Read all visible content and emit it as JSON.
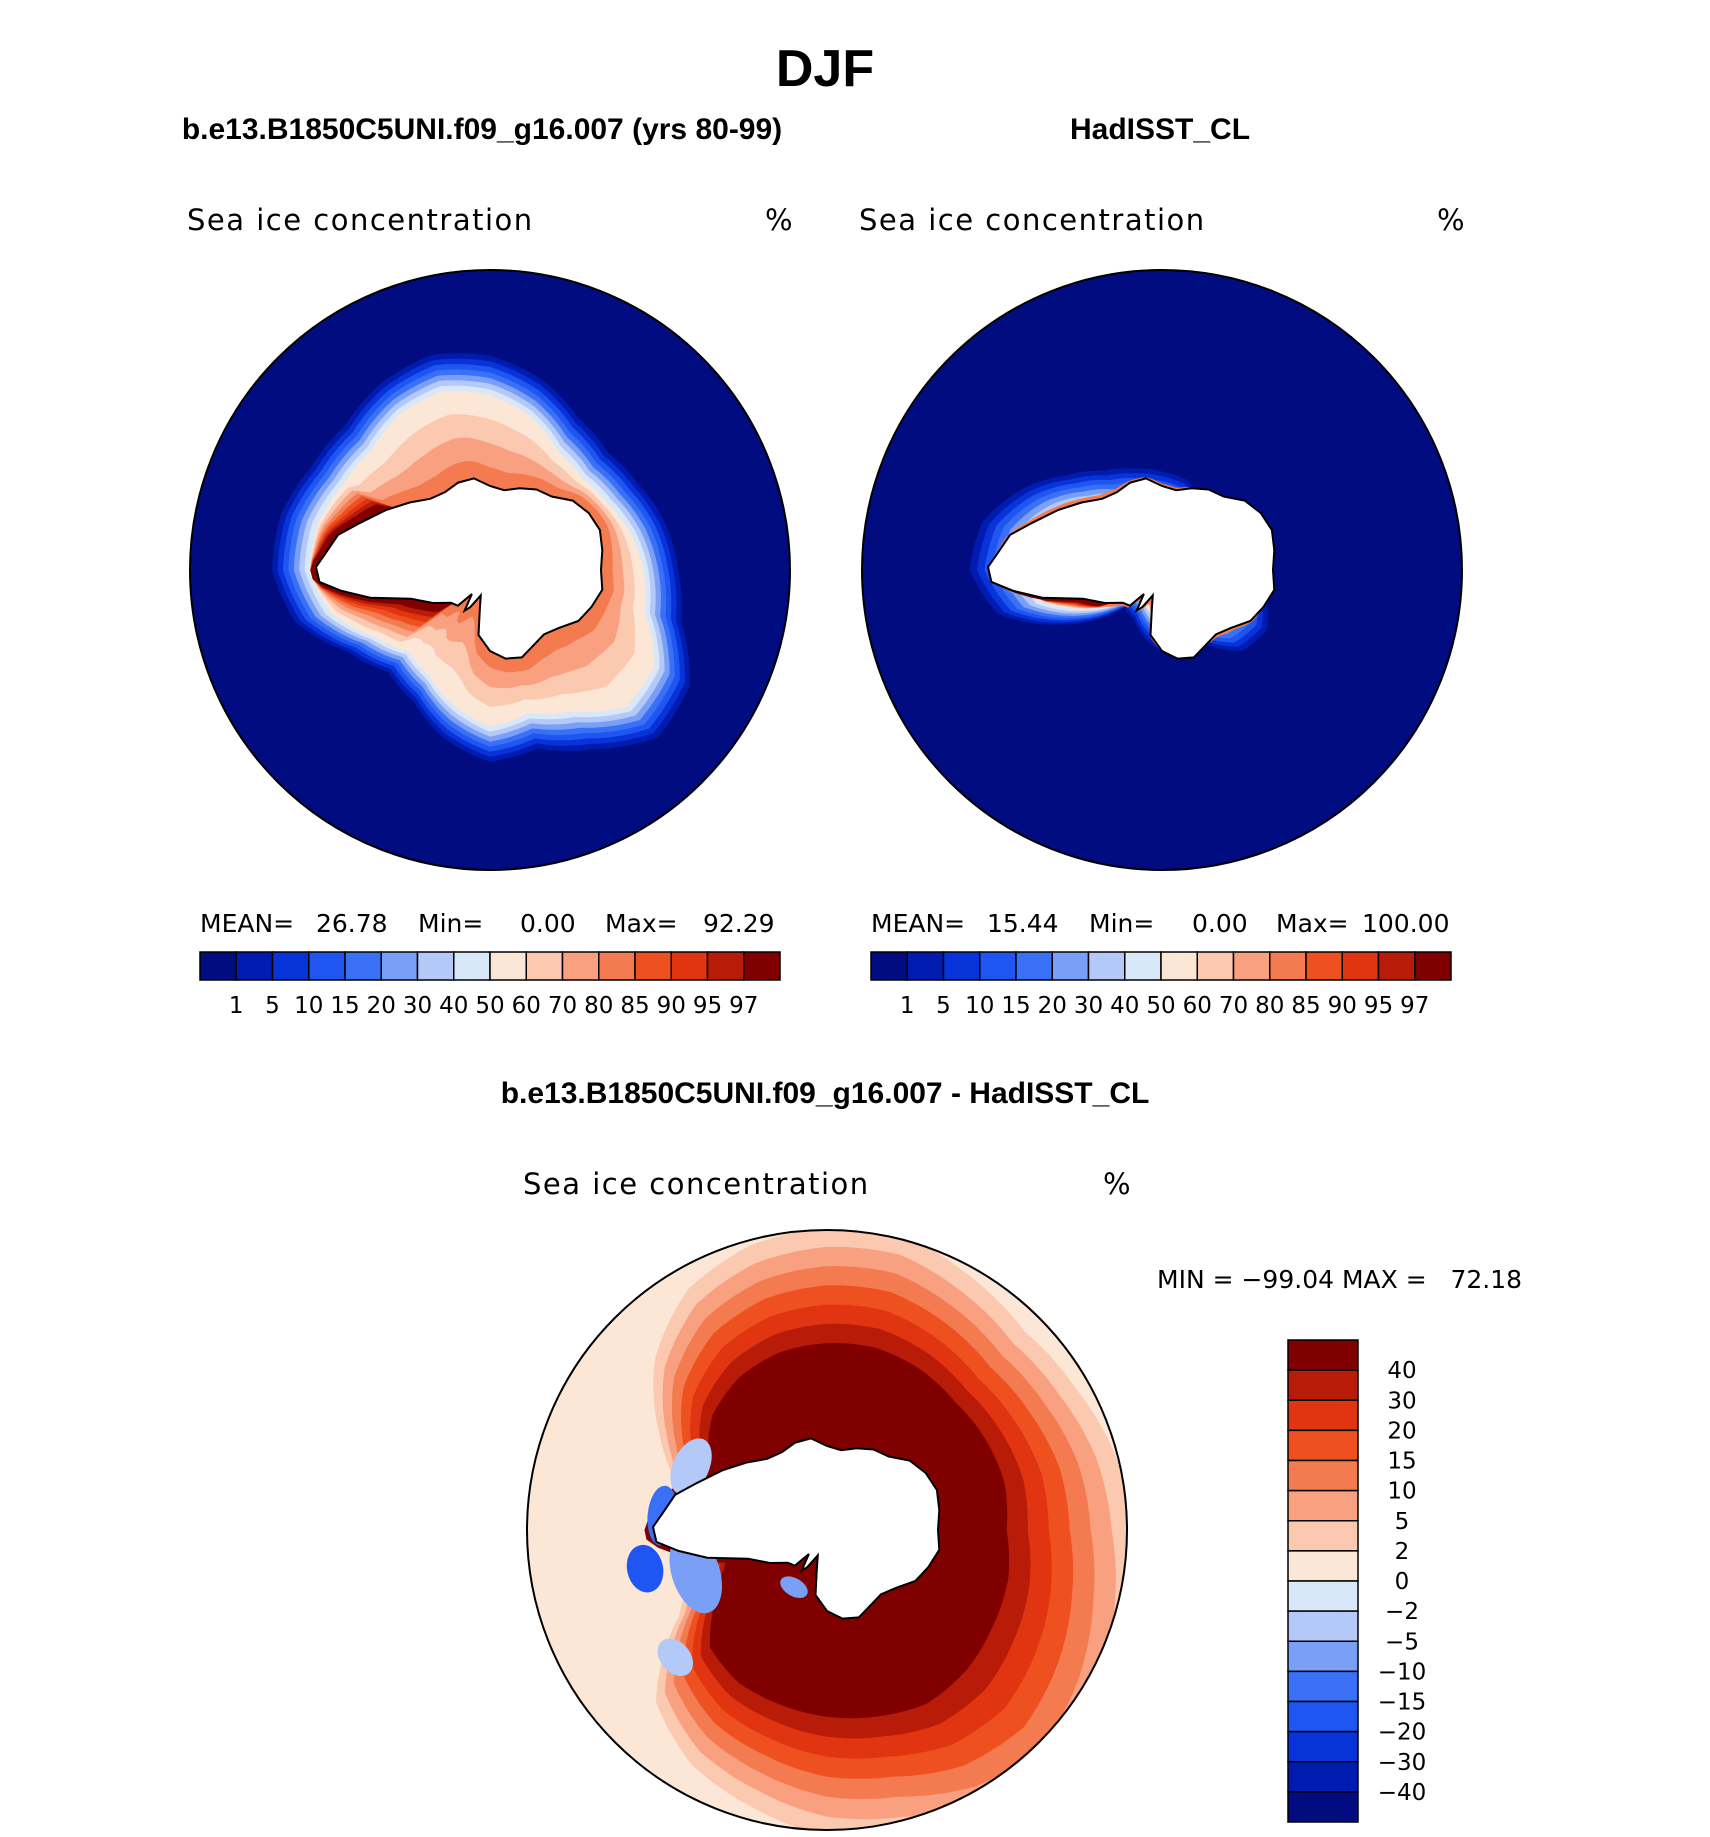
{
  "figure": {
    "title": "DJF",
    "variable_label": "Sea ice concentration",
    "unit": "%"
  },
  "chart_data": [
    {
      "type": "heatmap",
      "projection": "south-polar-stereographic",
      "subtitle": "b.e13.B1850C5UNI.f09_g16.007 (yrs 80-99)",
      "label": "Sea ice concentration",
      "unit": "%",
      "stats": {
        "mean": "26.78",
        "min": "0.00",
        "max": "92.29"
      },
      "stats_labels": {
        "mean": "MEAN=",
        "min": "Min=",
        "max": "Max="
      },
      "levels": [
        "1",
        "5",
        "10",
        "15",
        "20",
        "30",
        "40",
        "50",
        "60",
        "70",
        "80",
        "85",
        "90",
        "95",
        "97"
      ],
      "colors": [
        "#000c80",
        "#001bb0",
        "#0833d8",
        "#1f55f0",
        "#3a70f6",
        "#7a9ff7",
        "#b4c9f8",
        "#d9e8f8",
        "#fce6d6",
        "#fbc9b0",
        "#f8a080",
        "#f47a50",
        "#ef5020",
        "#e03510",
        "#b81c08",
        "#800000"
      ],
      "ice_edge": [
        [
          0,
          11.6,
          9.2
        ],
        [
          15,
          12.2,
          9.6
        ],
        [
          30,
          14.2,
          11.4
        ],
        [
          45,
          14.6,
          11.6
        ],
        [
          60,
          12.8,
          9.8
        ],
        [
          75,
          11.4,
          8.9
        ],
        [
          90,
          11.8,
          9.4
        ],
        [
          105,
          10.8,
          8.4
        ],
        [
          120,
          9.4,
          7.3
        ],
        [
          135,
          8.9,
          6.9
        ],
        [
          150,
          10.1,
          8.0
        ],
        [
          165,
          12.4,
          9.9
        ],
        [
          180,
          13.4,
          10.8
        ],
        [
          195,
          13.3,
          10.7
        ],
        [
          210,
          12.7,
          10.2
        ],
        [
          225,
          12.6,
          10.1
        ],
        [
          240,
          13.3,
          10.8
        ],
        [
          255,
          13.7,
          11.1
        ],
        [
          270,
          13.2,
          10.5
        ],
        [
          285,
          12.2,
          9.5
        ],
        [
          300,
          10.9,
          8.2
        ],
        [
          315,
          10.3,
          7.8
        ],
        [
          330,
          10.6,
          8.1
        ],
        [
          345,
          11.2,
          8.7
        ]
      ],
      "ice_core": {
        "from": 140,
        "to": 210,
        "coast": 0.45
      }
    },
    {
      "type": "heatmap",
      "projection": "south-polar-stereographic",
      "subtitle": "HadISST_CL",
      "label": "Sea ice concentration",
      "unit": "%",
      "stats": {
        "mean": "15.44",
        "min": "0.00",
        "max": "100.00"
      },
      "stats_labels": {
        "mean": "MEAN=",
        "min": "Min=",
        "max": "Max="
      },
      "levels": [
        "1",
        "5",
        "10",
        "15",
        "20",
        "30",
        "40",
        "50",
        "60",
        "70",
        "80",
        "85",
        "90",
        "95",
        "97"
      ],
      "colors": [
        "#000c80",
        "#001bb0",
        "#0833d8",
        "#1f55f0",
        "#3a70f6",
        "#7a9ff7",
        "#b4c9f8",
        "#d9e8f8",
        "#fce6d6",
        "#fbc9b0",
        "#f8a080",
        "#f47a50",
        "#ef5020",
        "#e03510",
        "#b81c08",
        "#800000"
      ],
      "ice_edge": [
        [
          0,
          6.2,
          3.8
        ],
        [
          15,
          6.8,
          4.2
        ],
        [
          30,
          7.6,
          4.8
        ],
        [
          45,
          7.2,
          4.4
        ],
        [
          60,
          5.4,
          3.2
        ],
        [
          75,
          4.8,
          2.8
        ],
        [
          90,
          5.2,
          3.0
        ],
        [
          105,
          4.4,
          2.5
        ],
        [
          120,
          3.6,
          2.0
        ],
        [
          135,
          3.4,
          1.9
        ],
        [
          150,
          6.8,
          4.6
        ],
        [
          165,
          10.6,
          7.4
        ],
        [
          180,
          12.0,
          8.4
        ],
        [
          195,
          11.6,
          8.1
        ],
        [
          210,
          10.1,
          7.0
        ],
        [
          225,
          8.4,
          5.6
        ],
        [
          240,
          7.2,
          4.6
        ],
        [
          255,
          6.6,
          4.2
        ],
        [
          270,
          6.2,
          3.9
        ],
        [
          285,
          5.9,
          3.6
        ],
        [
          300,
          5.1,
          3.0
        ],
        [
          315,
          4.4,
          2.6
        ],
        [
          330,
          4.9,
          3.0
        ],
        [
          345,
          5.6,
          3.4
        ]
      ],
      "ice_core": {
        "from": 150,
        "to": 180,
        "coast": 0.7
      }
    },
    {
      "type": "heatmap",
      "projection": "south-polar-stereographic",
      "subtitle": "b.e13.B1850C5UNI.f09_g16.007 - HadISST_CL",
      "label": "Sea ice concentration",
      "unit": "%",
      "stats_text": "MIN = −99.04 MAX =   72.18",
      "levels": [
        "40",
        "30",
        "20",
        "15",
        "10",
        "5",
        "2",
        "0",
        "−2",
        "−5",
        "−10",
        "−15",
        "−20",
        "−30",
        "−40"
      ],
      "colors": [
        "#800000",
        "#b81c08",
        "#e03510",
        "#ef5020",
        "#f47a50",
        "#f8a080",
        "#fbc9b0",
        "#fce6d6",
        "#d9e8f8",
        "#b4c9f8",
        "#7a9ff7",
        "#3a70f6",
        "#1f55f0",
        "#0833d8",
        "#001bb0",
        "#000c80"
      ],
      "diff_band": [
        [
          0,
          19.6,
          8.4
        ],
        [
          15,
          20.5,
          8.8
        ],
        [
          30,
          22.0,
          10.0
        ],
        [
          45,
          23.2,
          10.8
        ],
        [
          60,
          22.1,
          9.6
        ],
        [
          75,
          20.3,
          8.3
        ],
        [
          90,
          19.6,
          8.0
        ],
        [
          105,
          18.3,
          7.1
        ],
        [
          120,
          17.2,
          6.3
        ],
        [
          135,
          15.3,
          5.1
        ],
        [
          150,
          10.7,
          3.0
        ],
        [
          165,
          8.2,
          2.0
        ],
        [
          180,
          8.6,
          2.2
        ],
        [
          195,
          9.4,
          2.4
        ],
        [
          210,
          12.2,
          3.8
        ],
        [
          225,
          15.4,
          5.4
        ],
        [
          240,
          17.7,
          6.8
        ],
        [
          255,
          18.8,
          7.4
        ],
        [
          270,
          19.3,
          7.7
        ],
        [
          285,
          19.4,
          7.7
        ],
        [
          300,
          18.5,
          7.0
        ],
        [
          315,
          17.8,
          6.6
        ],
        [
          330,
          18.2,
          6.9
        ],
        [
          345,
          19.0,
          7.6
        ]
      ]
    }
  ]
}
